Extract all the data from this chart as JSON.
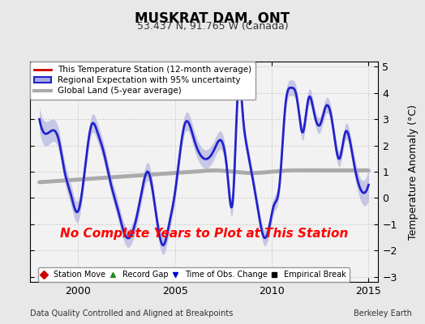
{
  "title": "MUSKRAT DAM, ONT",
  "subtitle": "53.437 N, 91.765 W (Canada)",
  "ylabel": "Temperature Anomaly (°C)",
  "xlabel_note": "Data Quality Controlled and Aligned at Breakpoints",
  "credit": "Berkeley Earth",
  "no_data_text": "No Complete Years to Plot at This Station",
  "xlim": [
    1997.5,
    2015.5
  ],
  "ylim": [
    -3.2,
    5.2
  ],
  "yticks": [
    -3,
    -2,
    -1,
    0,
    1,
    2,
    3,
    4,
    5
  ],
  "xticks": [
    2000,
    2005,
    2010,
    2015
  ],
  "bg_color": "#e8e8e8",
  "plot_bg_color": "#f2f2f2",
  "regional_color": "#2222cc",
  "regional_fill": "#aaaadd",
  "station_color": "#cc0000",
  "global_color": "#aaaaaa",
  "no_data_color": "#ff0000",
  "legend1_items": [
    {
      "label": "This Temperature Station (12-month average)",
      "color": "#cc0000",
      "lw": 2
    },
    {
      "label": "Regional Expectation with 95% uncertainty",
      "color": "#2222cc",
      "fill": "#aaaadd"
    },
    {
      "label": "Global Land (5-year average)",
      "color": "#aaaaaa",
      "lw": 3
    }
  ],
  "legend2_items": [
    {
      "label": "Station Move",
      "marker": "D",
      "color": "#cc0000"
    },
    {
      "label": "Record Gap",
      "marker": "^",
      "color": "#228B22"
    },
    {
      "label": "Time of Obs. Change",
      "marker": "v",
      "color": "#0000cc"
    },
    {
      "label": "Empirical Break",
      "marker": "s",
      "color": "#000000"
    }
  ],
  "regional_x": [
    1998.0,
    1998.5,
    1999.0,
    1999.3,
    1999.6,
    2000.0,
    2000.3,
    2000.7,
    2001.0,
    2001.3,
    2001.7,
    2002.0,
    2002.5,
    2003.0,
    2003.3,
    2003.6,
    2004.0,
    2004.4,
    2004.7,
    2005.0,
    2005.5,
    2006.0,
    2006.5,
    2007.0,
    2007.3,
    2007.7,
    2008.0,
    2008.3,
    2008.5,
    2008.7,
    2009.0,
    2009.3,
    2009.6,
    2009.9,
    2010.1,
    2010.4,
    2010.7,
    2011.0,
    2011.3,
    2011.6,
    2011.9,
    2012.2,
    2012.5,
    2012.8,
    2013.1,
    2013.5,
    2013.8,
    2014.2,
    2014.5,
    2014.8,
    2015.0
  ],
  "regional_y": [
    3.0,
    2.5,
    2.2,
    1.0,
    0.2,
    -0.5,
    0.8,
    2.8,
    2.5,
    1.8,
    0.5,
    -0.3,
    -1.5,
    -0.8,
    0.3,
    1.0,
    -0.5,
    -1.8,
    -1.0,
    0.2,
    2.8,
    2.2,
    1.5,
    1.8,
    2.2,
    1.0,
    0.0,
    4.5,
    3.2,
    2.0,
    0.8,
    -0.5,
    -1.5,
    -1.0,
    -0.3,
    0.5,
    3.5,
    4.2,
    3.8,
    2.5,
    3.8,
    3.2,
    2.8,
    3.5,
    3.0,
    1.5,
    2.5,
    1.5,
    0.5,
    0.2,
    0.5
  ],
  "regional_std": [
    0.45,
    0.45,
    0.4,
    0.4,
    0.4,
    0.4,
    0.35,
    0.35,
    0.35,
    0.35,
    0.35,
    0.35,
    0.35,
    0.35,
    0.35,
    0.35,
    0.35,
    0.35,
    0.35,
    0.35,
    0.35,
    0.35,
    0.35,
    0.35,
    0.35,
    0.35,
    0.35,
    0.3,
    0.3,
    0.3,
    0.3,
    0.3,
    0.3,
    0.3,
    0.3,
    0.3,
    0.3,
    0.3,
    0.3,
    0.3,
    0.3,
    0.3,
    0.3,
    0.3,
    0.3,
    0.3,
    0.3,
    0.35,
    0.4,
    0.5,
    0.6
  ],
  "global_x": [
    1998.0,
    1999.0,
    2000.0,
    2001.0,
    2002.0,
    2003.0,
    2004.0,
    2005.0,
    2006.0,
    2007.0,
    2008.0,
    2009.0,
    2010.0,
    2011.0,
    2012.0,
    2013.0,
    2014.0,
    2015.0
  ],
  "global_y": [
    0.6,
    0.65,
    0.7,
    0.75,
    0.8,
    0.85,
    0.9,
    0.95,
    1.0,
    1.05,
    1.0,
    0.95,
    1.0,
    1.05,
    1.05,
    1.05,
    1.05,
    1.05
  ]
}
